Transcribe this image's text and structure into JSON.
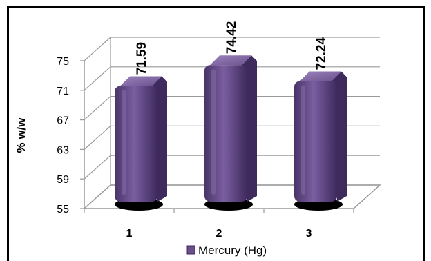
{
  "chart_data": {
    "type": "bar",
    "categories": [
      "1",
      "2",
      "3"
    ],
    "series": [
      {
        "name": "Mercury (Hg)",
        "values": [
          71.59,
          74.42,
          72.24
        ]
      }
    ],
    "ylabel": "% w/w",
    "xlabel": "",
    "ylim": [
      55,
      75
    ],
    "yticks": [
      "55",
      "59",
      "63",
      "67",
      "71",
      "75"
    ],
    "data_labels": [
      "71.59",
      "74.42",
      "72.24"
    ],
    "grid": true,
    "legend_position": "bottom",
    "colors": {
      "bar": "#6a4f8c",
      "bar_dark": "#3e2a5c",
      "bar_light": "#9c84be",
      "grid": "#9a9a9a"
    }
  }
}
